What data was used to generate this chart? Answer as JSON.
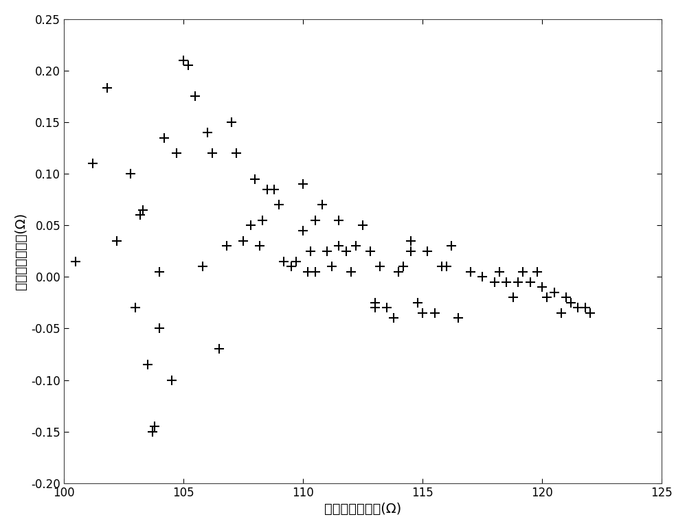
{
  "x": [
    100.5,
    101.2,
    101.8,
    102.2,
    102.8,
    103.0,
    103.2,
    103.3,
    103.5,
    103.7,
    103.8,
    104.0,
    104.0,
    104.2,
    104.5,
    104.7,
    105.0,
    105.2,
    105.5,
    105.8,
    106.0,
    106.2,
    106.5,
    106.8,
    107.0,
    107.2,
    107.5,
    107.8,
    108.0,
    108.2,
    108.3,
    108.5,
    108.8,
    109.0,
    109.2,
    109.5,
    109.7,
    110.0,
    110.0,
    110.2,
    110.3,
    110.5,
    110.5,
    110.8,
    111.0,
    111.2,
    111.5,
    111.5,
    111.8,
    112.0,
    112.2,
    112.5,
    112.8,
    113.0,
    113.0,
    113.2,
    113.5,
    113.8,
    114.0,
    114.2,
    114.5,
    114.5,
    114.8,
    115.0,
    115.2,
    115.5,
    115.8,
    116.0,
    116.2,
    116.5,
    117.0,
    117.5,
    118.0,
    118.2,
    118.5,
    118.8,
    119.0,
    119.2,
    119.5,
    119.8,
    120.0,
    120.2,
    120.5,
    120.8,
    121.0,
    121.2,
    121.5,
    121.8,
    122.0
  ],
  "y": [
    0.015,
    0.11,
    0.183,
    0.035,
    0.1,
    -0.03,
    0.06,
    0.065,
    -0.085,
    -0.15,
    -0.145,
    -0.05,
    0.005,
    0.135,
    -0.1,
    0.12,
    0.21,
    0.205,
    0.175,
    0.01,
    0.14,
    0.12,
    -0.07,
    0.03,
    0.15,
    0.12,
    0.035,
    0.05,
    0.095,
    0.03,
    0.055,
    0.085,
    0.085,
    0.07,
    0.015,
    0.01,
    0.015,
    0.045,
    0.09,
    0.005,
    0.025,
    0.005,
    0.055,
    0.07,
    0.025,
    0.01,
    0.03,
    0.055,
    0.025,
    0.005,
    0.03,
    0.05,
    0.025,
    -0.025,
    -0.03,
    0.01,
    -0.03,
    -0.04,
    0.005,
    0.01,
    0.025,
    0.035,
    -0.025,
    -0.035,
    0.025,
    -0.035,
    0.01,
    0.01,
    0.03,
    -0.04,
    0.005,
    0.0,
    -0.005,
    0.005,
    -0.005,
    -0.02,
    -0.005,
    0.005,
    -0.005,
    0.005,
    -0.01,
    -0.02,
    -0.015,
    -0.035,
    -0.02,
    -0.025,
    -0.03,
    -0.03,
    -0.035
  ],
  "xlim": [
    100,
    125
  ],
  "ylim": [
    -0.2,
    0.25
  ],
  "xticks": [
    100,
    105,
    110,
    115,
    120,
    125
  ],
  "yticks": [
    -0.2,
    -0.15,
    -0.1,
    -0.05,
    0,
    0.05,
    0.1,
    0.15,
    0.2,
    0.25
  ],
  "xlabel": "输出电阔期望値(Ω)",
  "ylabel": "输出电阔误差値(Ω)",
  "marker": "+",
  "marker_size": 100,
  "marker_color": "#000000",
  "background_color": "#ffffff",
  "linewidth": 1.5,
  "tick_fontsize": 12,
  "label_fontsize": 14
}
